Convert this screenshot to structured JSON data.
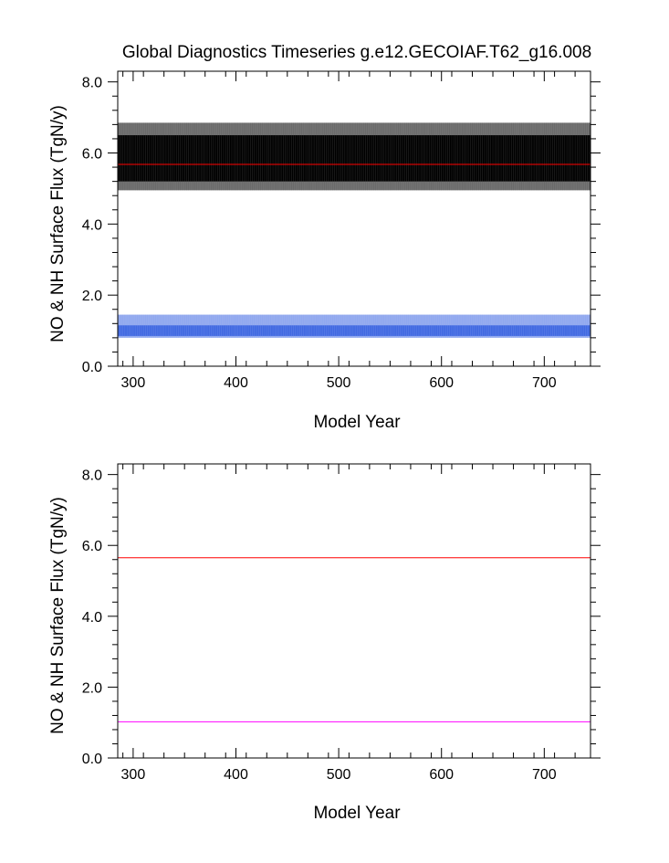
{
  "chart_data": [
    {
      "type": "line",
      "title": "Global Diagnostics Timeseries g.e12.GECOIAF.T62_g16.008",
      "xlabel": "Model Year",
      "ylabel": "NO & NH Surface Flux (TgN/y)",
      "xlim": [
        285,
        745
      ],
      "ylim": [
        0,
        8.3
      ],
      "xticks": [
        300,
        400,
        500,
        600,
        700
      ],
      "xtick_labels": [
        "300",
        "400",
        "500",
        "600",
        "700"
      ],
      "yticks": [
        0,
        2,
        4,
        6,
        8
      ],
      "ytick_labels": [
        "0.0",
        "2.0",
        "4.0",
        "6.0",
        "8.0"
      ],
      "series": [
        {
          "color": "#000000",
          "style": "dense-monthly-oscillation",
          "x_range": [
            285,
            745
          ],
          "min": 4.95,
          "max": 6.85,
          "core_min": 5.2,
          "core_max": 6.5
        },
        {
          "color": "#4169e1",
          "style": "dense-monthly-oscillation",
          "x_range": [
            285,
            745
          ],
          "min": 0.8,
          "max": 1.45,
          "core_min": 0.85,
          "core_max": 1.15
        },
        {
          "color": "#ff0000",
          "style": "flat",
          "x_range": [
            285,
            745
          ],
          "values": [
            5.68,
            5.68
          ]
        }
      ]
    },
    {
      "type": "line",
      "title": "",
      "xlabel": "Model Year",
      "ylabel": "NO & NH Surface Flux (TgN/y)",
      "xlim": [
        285,
        745
      ],
      "ylim": [
        0,
        8.3
      ],
      "xticks": [
        300,
        400,
        500,
        600,
        700
      ],
      "xtick_labels": [
        "300",
        "400",
        "500",
        "600",
        "700"
      ],
      "yticks": [
        0,
        2,
        4,
        6,
        8
      ],
      "ytick_labels": [
        "0.0",
        "2.0",
        "4.0",
        "6.0",
        "8.0"
      ],
      "series": [
        {
          "color": "#ff0000",
          "style": "flat",
          "x_range": [
            285,
            745
          ],
          "values": [
            5.65,
            5.65
          ]
        },
        {
          "color": "#ff00ff",
          "style": "flat",
          "x_range": [
            285,
            745
          ],
          "values": [
            1.02,
            1.02
          ]
        }
      ]
    }
  ]
}
